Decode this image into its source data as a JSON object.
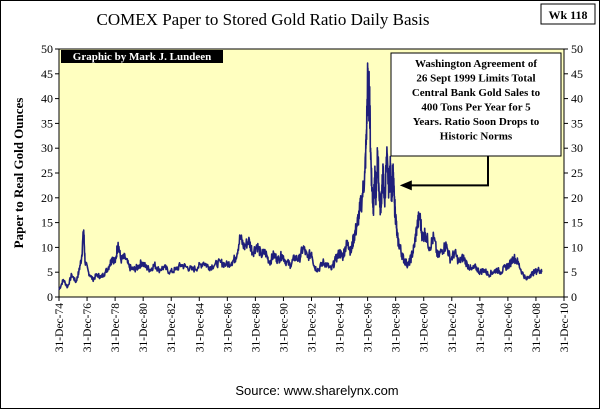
{
  "chart_data": {
    "type": "line",
    "title": "COMEX Paper to Stored Gold Ratio Daily Basis",
    "badge": "Wk 118",
    "ylabel": "Paper to Real Gold Ounces",
    "xlabel": "",
    "source": "Source: www.sharelynx.com",
    "credit": "Graphic by Mark J. Lundeen",
    "annotation_lines": [
      "Washington Agreement of",
      "26 Sept 1999 Limits Total",
      "Central Bank Gold Sales to",
      "400 Tons Per Year for 5",
      "Years.  Ratio Soon Drops to",
      "Historic Norms"
    ],
    "ylim": [
      0,
      50
    ],
    "yticks": [
      "0",
      "5",
      "10",
      "15",
      "20",
      "25",
      "30",
      "35",
      "40",
      "45",
      "50"
    ],
    "xlim": [
      1974.99,
      2010.99
    ],
    "xtick_labels": [
      "31-Dec-74",
      "31-Dec-76",
      "31-Dec-78",
      "31-Dec-80",
      "31-Dec-82",
      "31-Dec-84",
      "31-Dec-86",
      "31-Dec-88",
      "31-Dec-90",
      "31-Dec-92",
      "31-Dec-94",
      "31-Dec-96",
      "31-Dec-98",
      "31-Dec-00",
      "31-Dec-02",
      "31-Dec-04",
      "31-Dec-06",
      "31-Dec-08",
      "31-Dec-10"
    ],
    "arrow_target": {
      "x": 1999.0,
      "y": 22.5
    },
    "grid": false,
    "series": [
      {
        "color": "#1f1f7a",
        "points": [
          [
            1975.0,
            1.5
          ],
          [
            1975.3,
            3.5
          ],
          [
            1975.6,
            2.0
          ],
          [
            1975.9,
            4.5
          ],
          [
            1976.2,
            3.0
          ],
          [
            1976.4,
            5.0
          ],
          [
            1976.6,
            8.0
          ],
          [
            1976.75,
            13.5
          ],
          [
            1976.85,
            7.0
          ],
          [
            1977.1,
            5.0
          ],
          [
            1977.4,
            3.5
          ],
          [
            1977.7,
            4.5
          ],
          [
            1978.0,
            4.0
          ],
          [
            1978.3,
            5.0
          ],
          [
            1978.6,
            6.5
          ],
          [
            1978.8,
            8.0
          ],
          [
            1979.0,
            7.0
          ],
          [
            1979.2,
            11.0
          ],
          [
            1979.4,
            7.5
          ],
          [
            1979.7,
            8.0
          ],
          [
            1980.0,
            6.0
          ],
          [
            1980.3,
            5.5
          ],
          [
            1980.6,
            6.0
          ],
          [
            1980.9,
            7.0
          ],
          [
            1981.2,
            6.0
          ],
          [
            1981.5,
            5.5
          ],
          [
            1981.8,
            6.5
          ],
          [
            1982.1,
            5.5
          ],
          [
            1982.5,
            6.0
          ],
          [
            1982.9,
            5.0
          ],
          [
            1983.3,
            5.5
          ],
          [
            1983.7,
            6.5
          ],
          [
            1984.1,
            6.0
          ],
          [
            1984.5,
            5.5
          ],
          [
            1984.9,
            6.0
          ],
          [
            1985.3,
            7.0
          ],
          [
            1985.7,
            6.0
          ],
          [
            1986.1,
            6.5
          ],
          [
            1986.5,
            7.0
          ],
          [
            1986.9,
            6.5
          ],
          [
            1987.3,
            7.0
          ],
          [
            1987.6,
            8.0
          ],
          [
            1987.9,
            12.0
          ],
          [
            1988.2,
            10.0
          ],
          [
            1988.5,
            11.5
          ],
          [
            1988.8,
            9.0
          ],
          [
            1989.1,
            10.5
          ],
          [
            1989.4,
            8.5
          ],
          [
            1989.7,
            9.0
          ],
          [
            1990.0,
            7.0
          ],
          [
            1990.3,
            8.5
          ],
          [
            1990.6,
            7.5
          ],
          [
            1990.9,
            8.5
          ],
          [
            1991.2,
            7.0
          ],
          [
            1991.5,
            6.5
          ],
          [
            1991.8,
            8.0
          ],
          [
            1992.1,
            7.5
          ],
          [
            1992.4,
            10.0
          ],
          [
            1992.7,
            8.0
          ],
          [
            1993.0,
            9.0
          ],
          [
            1993.2,
            6.0
          ],
          [
            1993.5,
            5.5
          ],
          [
            1993.8,
            7.0
          ],
          [
            1994.1,
            6.5
          ],
          [
            1994.4,
            5.5
          ],
          [
            1994.7,
            7.5
          ],
          [
            1995.0,
            9.0
          ],
          [
            1995.2,
            8.0
          ],
          [
            1995.4,
            10.0
          ],
          [
            1995.6,
            11.0
          ],
          [
            1995.8,
            9.0
          ],
          [
            1996.0,
            12.0
          ],
          [
            1996.2,
            14.0
          ],
          [
            1996.4,
            17.0
          ],
          [
            1996.6,
            20.0
          ],
          [
            1996.8,
            25.0
          ],
          [
            1996.9,
            32.0
          ],
          [
            1997.0,
            44.0
          ],
          [
            1997.05,
            38.0
          ],
          [
            1997.12,
            42.0
          ],
          [
            1997.2,
            30.0
          ],
          [
            1997.3,
            22.0
          ],
          [
            1997.4,
            18.0
          ],
          [
            1997.5,
            24.0
          ],
          [
            1997.6,
            20.0
          ],
          [
            1997.7,
            29.5
          ],
          [
            1997.8,
            22.0
          ],
          [
            1997.9,
            18.0
          ],
          [
            1998.0,
            21.0
          ],
          [
            1998.1,
            25.0
          ],
          [
            1998.2,
            19.0
          ],
          [
            1998.35,
            28.0
          ],
          [
            1998.5,
            22.0
          ],
          [
            1998.6,
            26.0
          ],
          [
            1998.7,
            21.0
          ],
          [
            1998.8,
            25.0
          ],
          [
            1998.9,
            19.0
          ],
          [
            1999.0,
            16.0
          ],
          [
            1999.1,
            12.0
          ],
          [
            1999.3,
            10.0
          ],
          [
            1999.5,
            8.0
          ],
          [
            1999.7,
            7.0
          ],
          [
            1999.9,
            6.5
          ],
          [
            2000.1,
            8.0
          ],
          [
            2000.3,
            10.0
          ],
          [
            2000.5,
            14.0
          ],
          [
            2000.7,
            16.5
          ],
          [
            2000.9,
            12.0
          ],
          [
            2001.1,
            13.0
          ],
          [
            2001.4,
            10.0
          ],
          [
            2001.7,
            12.0
          ],
          [
            2002.0,
            8.0
          ],
          [
            2002.3,
            9.5
          ],
          [
            2002.6,
            10.5
          ],
          [
            2002.9,
            7.5
          ],
          [
            2003.2,
            9.0
          ],
          [
            2003.5,
            7.0
          ],
          [
            2003.8,
            8.0
          ],
          [
            2004.1,
            6.5
          ],
          [
            2004.4,
            5.5
          ],
          [
            2004.7,
            6.0
          ],
          [
            2005.0,
            5.0
          ],
          [
            2005.3,
            5.5
          ],
          [
            2005.6,
            4.5
          ],
          [
            2005.9,
            5.0
          ],
          [
            2006.2,
            5.5
          ],
          [
            2006.5,
            5.0
          ],
          [
            2006.8,
            6.0
          ],
          [
            2007.1,
            6.5
          ],
          [
            2007.4,
            8.0
          ],
          [
            2007.7,
            7.0
          ],
          [
            2008.0,
            5.0
          ],
          [
            2008.3,
            3.5
          ],
          [
            2008.6,
            4.5
          ],
          [
            2008.9,
            5.0
          ],
          [
            2009.2,
            5.5
          ],
          [
            2009.4,
            5.0
          ]
        ]
      }
    ]
  }
}
